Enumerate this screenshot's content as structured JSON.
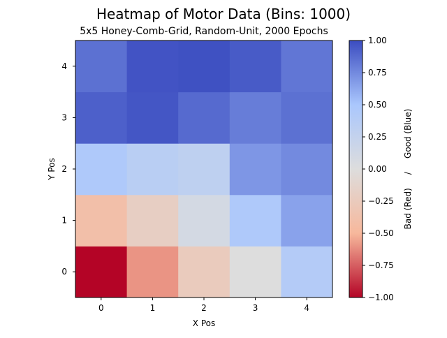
{
  "chart_data": {
    "type": "heatmap",
    "title": "Heatmap of Motor Data (Bins: 1000)",
    "subtitle": "5x5 Honey-Comb-Grid, Random-Unit, 2000 Epochs",
    "xlabel": "X Pos",
    "ylabel": "Y Pos",
    "x_categories": [
      "0",
      "1",
      "2",
      "3",
      "4"
    ],
    "y_categories": [
      "0",
      "1",
      "2",
      "3",
      "4"
    ],
    "values": [
      [
        -1.0,
        -0.6,
        -0.25,
        0.0,
        0.4
      ],
      [
        -0.4,
        -0.2,
        0.1,
        0.45,
        0.65
      ],
      [
        0.45,
        0.35,
        0.3,
        0.7,
        0.75
      ],
      [
        0.92,
        0.96,
        0.88,
        0.8,
        0.85
      ],
      [
        0.85,
        0.97,
        0.98,
        0.94,
        0.83
      ]
    ],
    "colormap": "coolwarm",
    "colormap_stops": [
      "#b40426",
      "#f7b89c",
      "#dddddd",
      "#aac7fd",
      "#3b4cc0"
    ],
    "vmin": -1.0,
    "vmax": 1.0,
    "colorbar": {
      "label": "Bad (Red)     /     Good (Blue)",
      "ticks": [
        1.0,
        0.75,
        0.5,
        0.25,
        0.0,
        -0.25,
        -0.5,
        -0.75,
        -1.0
      ],
      "tick_labels": [
        "1.00",
        "0.75",
        "0.50",
        "0.25",
        "0.00",
        "−0.25",
        "−0.50",
        "−0.75",
        "−1.00"
      ]
    }
  }
}
